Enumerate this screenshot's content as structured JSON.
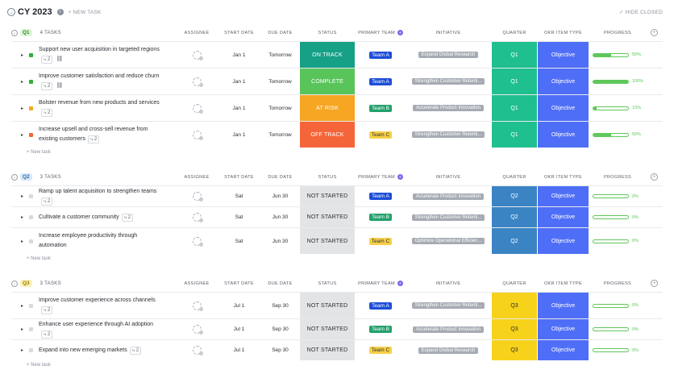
{
  "header": {
    "title": "CY 2023",
    "info_icon": "i",
    "new_task": "+ NEW TASK",
    "hide_closed": "HIDE CLOSED"
  },
  "columns": {
    "assignee": "ASSIGNEE",
    "start_date": "START DATE",
    "due_date": "DUE DATE",
    "status": "STATUS",
    "primary_team": "PRIMARY TEAM",
    "initiative": "INITIATIVE",
    "quarter": "QUARTER",
    "okr_item_type": "OKR ITEM TYPE",
    "progress": "PROGRESS"
  },
  "new_task_link": "+ New task",
  "colors": {
    "on_track": "#16a085",
    "complete": "#58c45a",
    "at_risk": "#f6a623",
    "off_track": "#f5653a",
    "not_started": "#e3e4e6",
    "team_a": "#1d4ed8",
    "team_b": "#22a06b",
    "team_c": "#f7d046",
    "q1": "#1fbf8f",
    "q2": "#3a84c4",
    "q3": "#f7d21a",
    "okr": "#4f6ef7",
    "progress": "#5fc75a"
  },
  "groups": [
    {
      "badge": "Q1",
      "badge_bg": "#dff5d9",
      "badge_color": "#2f8a2a",
      "count": "4 TASKS",
      "rows": [
        {
          "name": "Support new user acquisition in targeted regions",
          "subtasks": "2",
          "has_link": true,
          "square": "#2fae3a",
          "start": "Jan 1",
          "due": "Tomorrow",
          "status": "ON TRACK",
          "status_bg": "#16a085",
          "status_fg": "#ffffff",
          "team": "Team A",
          "team_bg": "#1d4ed8",
          "team_fg": "#ffffff",
          "initiative": "Expand Global Research",
          "quarter": "Q1",
          "q_bg": "#1fbf8f",
          "q_fg": "#ffffff",
          "okr": "Objective",
          "progress": 50,
          "progress_label": "50%"
        },
        {
          "name": "Improve customer satisfaction and reduce churn",
          "subtasks": "2",
          "has_link": true,
          "square": "#2fae3a",
          "start": "Jan 1",
          "due": "Tomorrow",
          "status": "COMPLETE",
          "status_bg": "#58c45a",
          "status_fg": "#ffffff",
          "team": "Team A",
          "team_bg": "#1d4ed8",
          "team_fg": "#ffffff",
          "initiative": "Strengthen Customer Retenti...",
          "quarter": "Q1",
          "q_bg": "#1fbf8f",
          "q_fg": "#ffffff",
          "okr": "Objective",
          "progress": 100,
          "progress_label": "100%"
        },
        {
          "name": "Bolster revenue from new products and services",
          "subtasks": "2",
          "has_link": false,
          "square": "#f6a623",
          "start": "Jan 1",
          "due": "Tomorrow",
          "status": "AT RISK",
          "status_bg": "#f6a623",
          "status_fg": "#ffffff",
          "team": "Team B",
          "team_bg": "#22a06b",
          "team_fg": "#ffffff",
          "initiative": "Accelerate Product Innovation",
          "quarter": "Q1",
          "q_bg": "#1fbf8f",
          "q_fg": "#ffffff",
          "okr": "Objective",
          "progress": 10,
          "progress_label": "10%"
        },
        {
          "name": "Increase upsell and cross-sell revenue from existing customers",
          "subtasks": "2",
          "has_link": false,
          "square": "#f5653a",
          "start": "Jan 1",
          "due": "Tomorrow",
          "status": "OFF TRACK",
          "status_bg": "#f5653a",
          "status_fg": "#ffffff",
          "team": "Team C",
          "team_bg": "#f7d046",
          "team_fg": "#2a2e34",
          "initiative": "Strengthen Customer Retenti...",
          "quarter": "Q1",
          "q_bg": "#1fbf8f",
          "q_fg": "#ffffff",
          "okr": "Objective",
          "progress": 50,
          "progress_label": "50%"
        }
      ]
    },
    {
      "badge": "Q2",
      "badge_bg": "#d8e8f7",
      "badge_color": "#2f6fb0",
      "count": "3 TASKS",
      "rows": [
        {
          "name": "Ramp up talent acquisition to strengthen teams",
          "subtasks": "2",
          "has_link": false,
          "square": "#d6d9de",
          "start": "Sat",
          "due": "Jun 30",
          "status": "NOT STARTED",
          "status_bg": "#e3e4e6",
          "status_fg": "#2a2e34",
          "team": "Team A",
          "team_bg": "#1d4ed8",
          "team_fg": "#ffffff",
          "initiative": "Accelerate Product Innovation",
          "quarter": "Q2",
          "q_bg": "#3a84c4",
          "q_fg": "#ffffff",
          "okr": "Objective",
          "progress": 0,
          "progress_label": "0%"
        },
        {
          "name": "Cultivate a customer community",
          "subtasks": "2",
          "has_link": false,
          "square": "#d6d9de",
          "start": "Sat",
          "due": "Jun 30",
          "status": "NOT STARTED",
          "status_bg": "#e3e4e6",
          "status_fg": "#2a2e34",
          "team": "Team B",
          "team_bg": "#22a06b",
          "team_fg": "#ffffff",
          "initiative": "Strengthen Customer Retenti...",
          "quarter": "Q2",
          "q_bg": "#3a84c4",
          "q_fg": "#ffffff",
          "okr": "Objective",
          "progress": 0,
          "progress_label": "0%"
        },
        {
          "name": "Increase employee productivity through automation",
          "subtasks": "",
          "has_link": false,
          "square": "#d6d9de",
          "start": "Sat",
          "due": "Jun 30",
          "status": "NOT STARTED",
          "status_bg": "#e3e4e6",
          "status_fg": "#2a2e34",
          "team": "Team C",
          "team_bg": "#f7d046",
          "team_fg": "#2a2e34",
          "initiative": "Optimize Operational Efficien...",
          "quarter": "Q2",
          "q_bg": "#3a84c4",
          "q_fg": "#ffffff",
          "okr": "Objective",
          "progress": 0,
          "progress_label": "0%"
        }
      ]
    },
    {
      "badge": "Q3",
      "badge_bg": "#fbf1b8",
      "badge_color": "#9a7b00",
      "count": "3 TASKS",
      "rows": [
        {
          "name": "Improve customer experience across channels",
          "subtasks": "2",
          "has_link": false,
          "square": "#d6d9de",
          "start": "Jul 1",
          "due": "Sep 30",
          "status": "NOT STARTED",
          "status_bg": "#e3e4e6",
          "status_fg": "#2a2e34",
          "team": "Team A",
          "team_bg": "#1d4ed8",
          "team_fg": "#ffffff",
          "initiative": "Strengthen Customer Retenti...",
          "quarter": "Q3",
          "q_bg": "#f7d21a",
          "q_fg": "#2a2e34",
          "okr": "Objective",
          "progress": 0,
          "progress_label": "0%"
        },
        {
          "name": "Enhance user experience through AI adoption",
          "subtasks": "2",
          "has_link": false,
          "square": "#d6d9de",
          "start": "Jul 1",
          "due": "Sep 30",
          "status": "NOT STARTED",
          "status_bg": "#e3e4e6",
          "status_fg": "#2a2e34",
          "team": "Team B",
          "team_bg": "#22a06b",
          "team_fg": "#ffffff",
          "initiative": "Accelerate Product Innovation",
          "quarter": "Q3",
          "q_bg": "#f7d21a",
          "q_fg": "#2a2e34",
          "okr": "Objective",
          "progress": 0,
          "progress_label": "0%"
        },
        {
          "name": "Expand into new emerging markets",
          "subtasks": "2",
          "has_link": false,
          "square": "#d6d9de",
          "start": "Jul 1",
          "due": "Sep 30",
          "status": "NOT STARTED",
          "status_bg": "#e3e4e6",
          "status_fg": "#2a2e34",
          "team": "Team C",
          "team_bg": "#f7d046",
          "team_fg": "#2a2e34",
          "initiative": "Expand Global Research",
          "quarter": "Q3",
          "q_bg": "#f7d21a",
          "q_fg": "#2a2e34",
          "okr": "Objective",
          "progress": 0,
          "progress_label": "0%"
        }
      ]
    }
  ]
}
